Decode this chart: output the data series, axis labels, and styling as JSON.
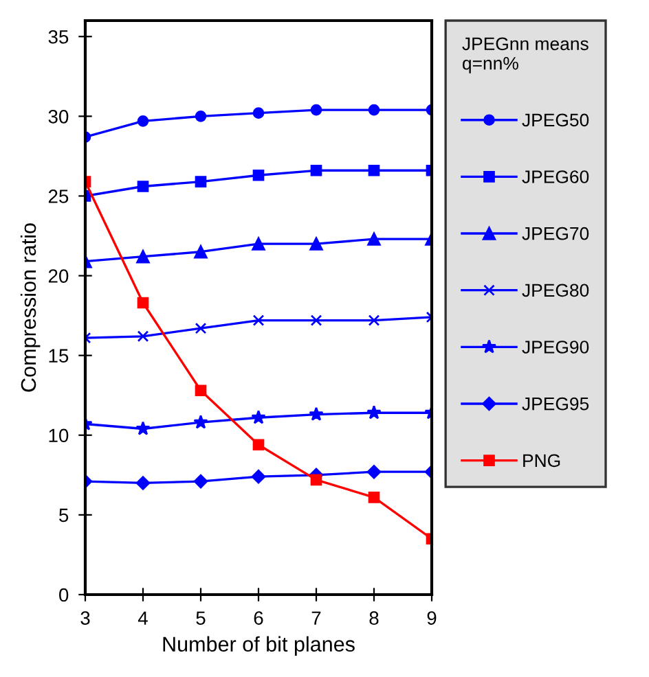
{
  "chart_data": {
    "type": "line",
    "xlabel": "Number of bit planes",
    "ylabel": "Compression ratio",
    "legend_title": "JPEGnn means\nq=nn%",
    "legend": "right",
    "x": [
      3,
      4,
      5,
      6,
      7,
      8,
      9
    ],
    "xlim": [
      3,
      9
    ],
    "xticks": [
      3,
      4,
      5,
      6,
      7,
      8,
      9
    ],
    "ylim": [
      0,
      36
    ],
    "yticks": [
      0,
      5,
      10,
      15,
      20,
      25,
      30,
      35
    ],
    "grid": false,
    "line_style": "solid",
    "series": [
      {
        "name": "JPEG50",
        "color": "#0000ff",
        "marker": "circle",
        "values": [
          28.7,
          29.7,
          30.0,
          30.2,
          30.4,
          30.4,
          30.4
        ]
      },
      {
        "name": "JPEG60",
        "color": "#0000ff",
        "marker": "square",
        "values": [
          25.0,
          25.6,
          25.9,
          26.3,
          26.6,
          26.6,
          26.6
        ]
      },
      {
        "name": "JPEG70",
        "color": "#0000ff",
        "marker": "triangle",
        "values": [
          20.9,
          21.2,
          21.5,
          22.0,
          22.0,
          22.3,
          22.3
        ]
      },
      {
        "name": "JPEG80",
        "color": "#0000ff",
        "marker": "cross",
        "values": [
          16.1,
          16.2,
          16.7,
          17.2,
          17.2,
          17.2,
          17.4
        ]
      },
      {
        "name": "JPEG90",
        "color": "#0000ff",
        "marker": "star",
        "values": [
          10.7,
          10.4,
          10.8,
          11.1,
          11.3,
          11.4,
          11.4
        ]
      },
      {
        "name": "JPEG95",
        "color": "#0000ff",
        "marker": "diamond",
        "values": [
          7.1,
          7.0,
          7.1,
          7.4,
          7.5,
          7.7,
          7.7
        ]
      },
      {
        "name": "PNG",
        "color": "#ff0000",
        "marker": "square",
        "values": [
          25.9,
          18.3,
          12.8,
          9.4,
          7.2,
          6.1,
          3.5
        ]
      }
    ]
  }
}
